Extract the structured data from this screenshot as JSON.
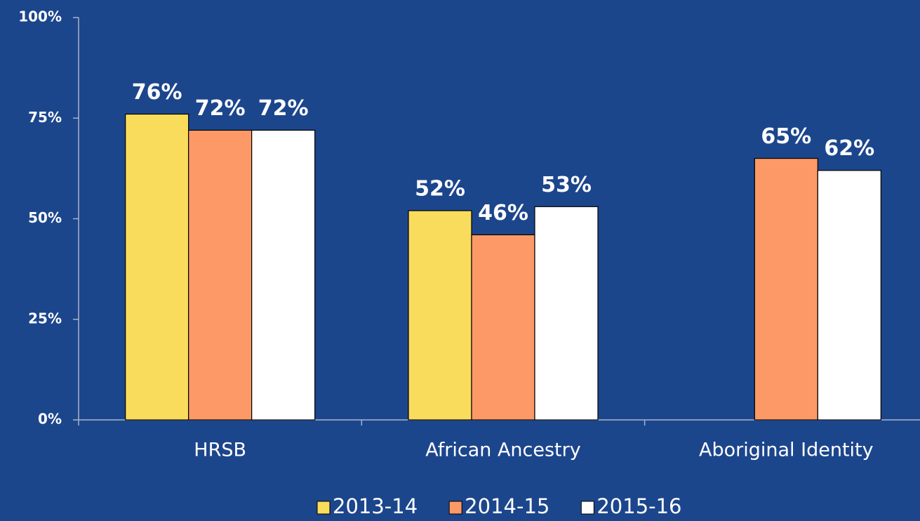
{
  "chart_data": {
    "type": "bar",
    "categories": [
      "HRSB",
      "African Ancestry",
      "Aboriginal Identity"
    ],
    "series": [
      {
        "name": "2013-14",
        "color": "#f9dc5c",
        "values": [
          76,
          52,
          null
        ],
        "value_labels": [
          "76%",
          "52%",
          null
        ]
      },
      {
        "name": "2014-15",
        "color": "#fd9966",
        "values": [
          72,
          46,
          65
        ],
        "value_labels": [
          "72%",
          "46%",
          "65%"
        ]
      },
      {
        "name": "2015-16",
        "color": "#ffffff",
        "values": [
          72,
          53,
          62
        ],
        "value_labels": [
          "72%",
          "53%",
          "62%"
        ]
      }
    ],
    "ylim": [
      0,
      100
    ],
    "yticks": [
      {
        "value": 0,
        "label": "0%"
      },
      {
        "value": 25,
        "label": "25%"
      },
      {
        "value": 50,
        "label": "50%"
      },
      {
        "value": 75,
        "label": "75%"
      },
      {
        "value": 100,
        "label": "100%"
      }
    ],
    "grid": false,
    "legend": "bottom"
  }
}
